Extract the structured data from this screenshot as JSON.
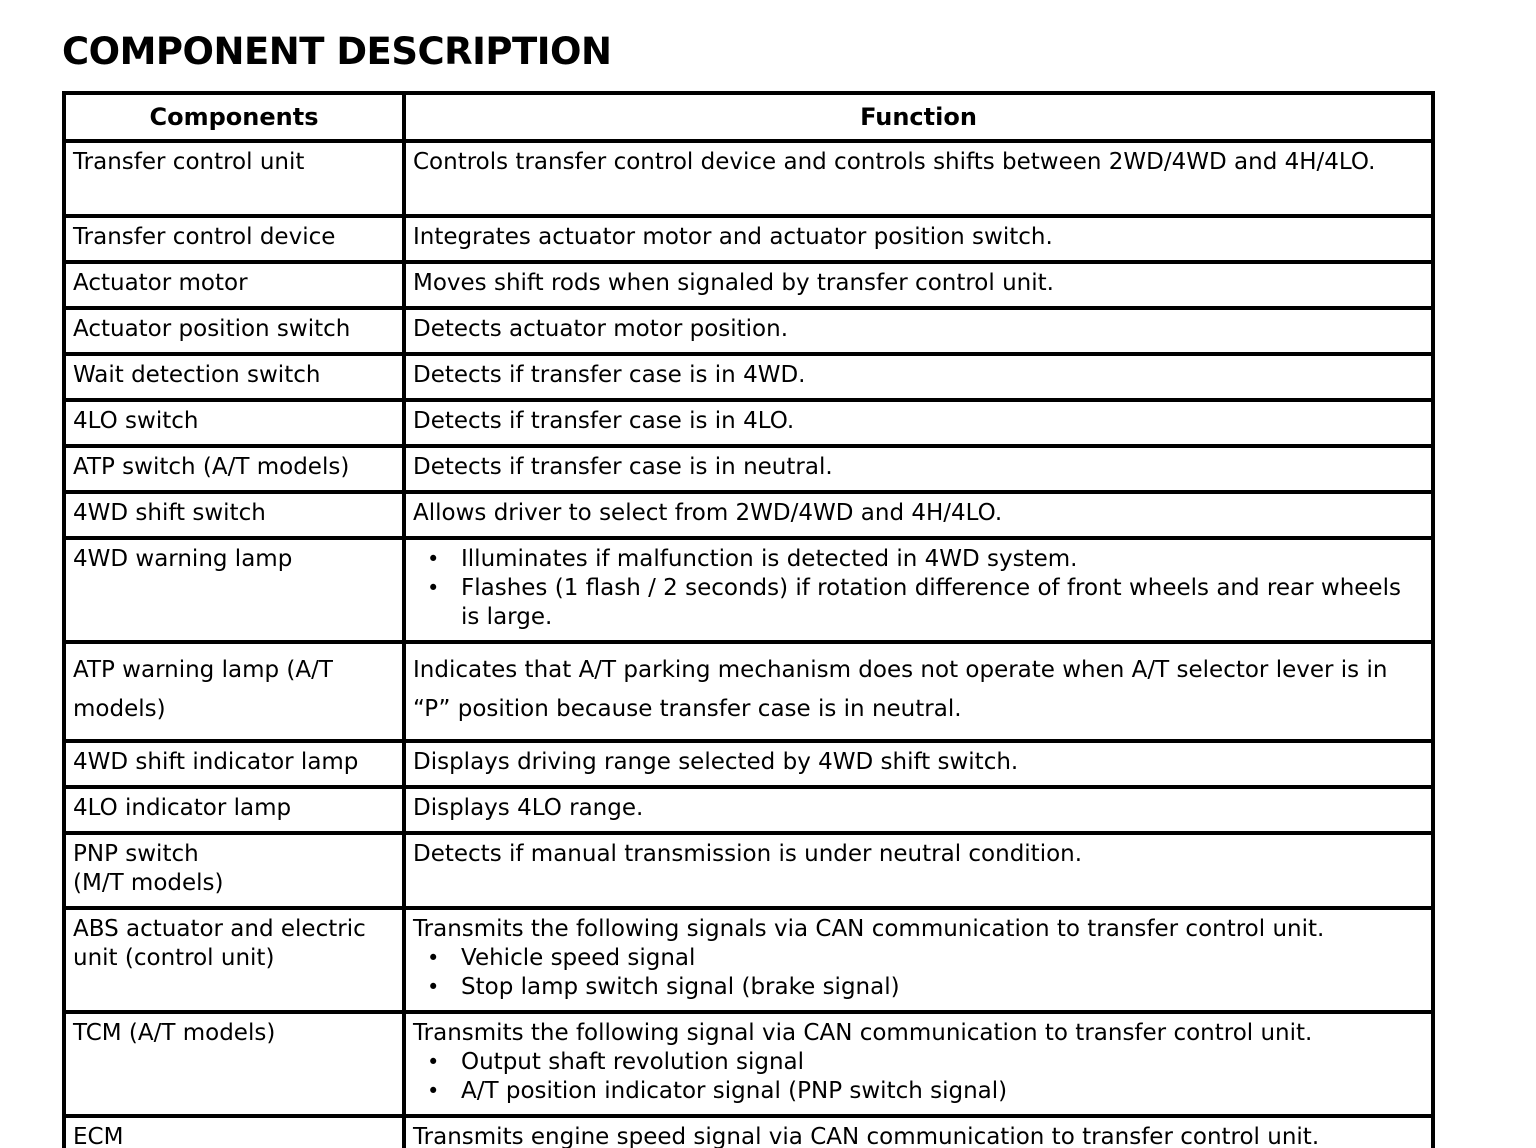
{
  "page": {
    "title": "COMPONENT DESCRIPTION"
  },
  "table": {
    "headers": {
      "components": "Components",
      "function": "Function"
    },
    "rows": [
      {
        "component": "Transfer control unit",
        "function": "Controls transfer control device and controls shifts between 2WD/4WD and 4H/4LO."
      },
      {
        "component": "Transfer control device",
        "function": "Integrates actuator motor and actuator position switch."
      },
      {
        "component": "Actuator motor",
        "function": "Moves shift rods when signaled by transfer control unit."
      },
      {
        "component": "Actuator position switch",
        "function": "Detects actuator motor position."
      },
      {
        "component": "Wait detection switch",
        "function": "Detects if transfer case is in 4WD."
      },
      {
        "component": "4LO switch",
        "function": "Detects if transfer case is in 4LO."
      },
      {
        "component": "ATP switch (A/T models)",
        "function": "Detects if transfer case is in neutral."
      },
      {
        "component": "4WD shift switch",
        "function": "Allows driver to select from 2WD/4WD and 4H/4LO."
      },
      {
        "component": "4WD warning lamp",
        "bullets": [
          "Illuminates if malfunction is detected in 4WD system.",
          "Flashes (1 flash / 2 seconds) if rotation difference of front wheels and rear wheels is large."
        ]
      },
      {
        "component": "ATP warning lamp (A/T models)",
        "function": "Indicates that A/T parking mechanism does not operate when A/T selector lever is in “P” position because transfer case is in neutral."
      },
      {
        "component": "4WD shift indicator lamp",
        "function": "Displays driving range selected by 4WD shift switch."
      },
      {
        "component": "4LO indicator lamp",
        "function": "Displays 4LO range."
      },
      {
        "component": "PNP switch\n(M/T models)",
        "function": "Detects if manual transmission is under neutral condition."
      },
      {
        "component": "ABS actuator and electric unit (control unit)",
        "function_intro": "Transmits the following signals via CAN communication to transfer control unit.",
        "bullets": [
          "Vehicle speed signal",
          "Stop lamp switch signal (brake signal)"
        ]
      },
      {
        "component": "TCM (A/T models)",
        "function_intro": "Transmits the following signal via CAN communication to transfer control unit.",
        "bullets": [
          "Output shaft revolution signal",
          "A/T position indicator signal (PNP switch signal)"
        ]
      },
      {
        "component": "ECM",
        "function": "Transmits engine speed signal via CAN communication to transfer control unit."
      }
    ],
    "bullet_glyph": "•"
  }
}
